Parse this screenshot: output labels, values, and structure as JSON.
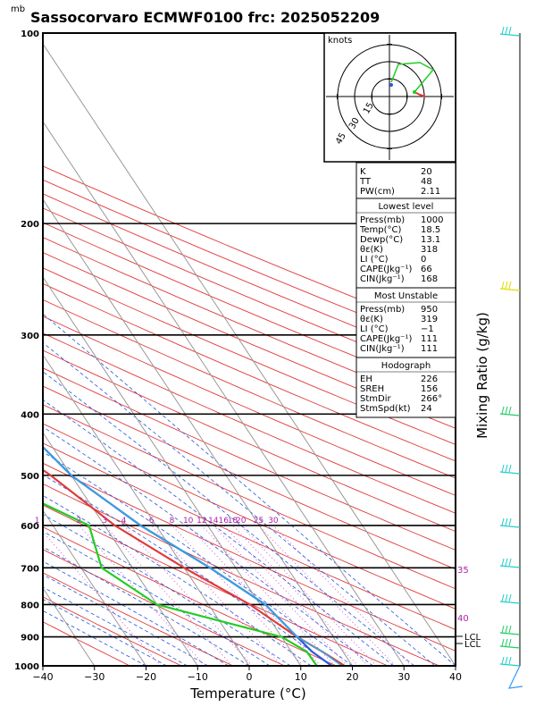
{
  "header": {
    "title": "Sassocorvaro ECMWF0100 frc: 2025052209",
    "pressure_unit": "mb"
  },
  "axes": {
    "xlabel": "Temperature (°C)",
    "right_label": "Mixing Ratio (g/kg)",
    "pressure_ticks": [
      "100",
      "200",
      "300",
      "400",
      "500",
      "600",
      "700",
      "800",
      "900",
      "1000"
    ],
    "temp_ticks": [
      "−40",
      "−30",
      "−20",
      "−10",
      "0",
      "10",
      "20",
      "30",
      "40"
    ],
    "mixing_ratio_labels": [
      "1",
      "2",
      "3",
      "4",
      "6",
      "8",
      "10",
      "12",
      "14",
      "16",
      "18",
      "20",
      "25",
      "30"
    ],
    "theta_e_labels": [
      "35",
      "40"
    ],
    "lcl_labels": [
      "LCL",
      "LCL"
    ]
  },
  "hodograph": {
    "unit": "knots",
    "ring_labels": [
      "15",
      "30",
      "45"
    ]
  },
  "indices": {
    "top": [
      {
        "label": "K",
        "value": "20"
      },
      {
        "label": "TT",
        "value": "48"
      },
      {
        "label": "PW(cm)",
        "value": "2.11"
      }
    ],
    "lowest_level": {
      "header": "Lowest level",
      "rows": [
        {
          "label": "Press(mb)",
          "value": "1000"
        },
        {
          "label": "Temp(°C)",
          "value": "18.5"
        },
        {
          "label": "Dewp(°C)",
          "value": "13.1"
        },
        {
          "label": "θε(K)",
          "value": "318"
        },
        {
          "label": "LI (°C)",
          "value": "0"
        },
        {
          "label": "CAPE(Jkg⁻¹)",
          "value": "66"
        },
        {
          "label": "CIN(Jkg⁻¹)",
          "value": "168"
        }
      ]
    },
    "most_unstable": {
      "header": "Most Unstable",
      "rows": [
        {
          "label": "Press(mb)",
          "value": "950"
        },
        {
          "label": "θε(K)",
          "value": "319"
        },
        {
          "label": "LI (°C)",
          "value": "−1"
        },
        {
          "label": "CAPE(Jkg⁻¹)",
          "value": "111"
        },
        {
          "label": "CIN(Jkg⁻¹)",
          "value": "111"
        }
      ]
    },
    "hodograph": {
      "header": "Hodograph",
      "rows": [
        {
          "label": "EH",
          "value": "226"
        },
        {
          "label": "SREH",
          "value": "156"
        },
        {
          "label": "StmDir",
          "value": "266°"
        },
        {
          "label": "StmSpd(kt)",
          "value": "24"
        }
      ]
    }
  },
  "colors": {
    "temperature": "#e03a3a",
    "dewpoint": "#22cc22",
    "parcel": "#3355dd",
    "environment": "#33aadd",
    "dry_adiabat": "#e03a3a",
    "moist_adiabat": "#2255dd",
    "mixing_ratio": "#cc44cc",
    "wind_barb": "#22cccc",
    "label_magenta": "#aa22aa"
  },
  "chart_data": {
    "type": "skew-t",
    "x_range": [
      -40,
      40
    ],
    "p_range": [
      100,
      1000
    ],
    "series": [
      {
        "key": "temperature",
        "points": [
          [
            -37,
            110
          ],
          [
            -24,
            150
          ],
          [
            -14,
            200
          ],
          [
            -10,
            250
          ],
          [
            -16,
            300
          ],
          [
            -23,
            400
          ],
          [
            -14,
            500
          ],
          [
            -8,
            600
          ],
          [
            0,
            700
          ],
          [
            8,
            800
          ],
          [
            13,
            900
          ],
          [
            16,
            950
          ],
          [
            18.5,
            1000
          ]
        ]
      },
      {
        "key": "dewpoint",
        "points": [
          [
            -38,
            110
          ],
          [
            -36,
            150
          ],
          [
            -33,
            200
          ],
          [
            -31,
            250
          ],
          [
            -32,
            300
          ],
          [
            -33,
            400
          ],
          [
            -27,
            500
          ],
          [
            -13,
            600
          ],
          [
            -16,
            700
          ],
          [
            -10,
            800
          ],
          [
            10,
            900
          ],
          [
            13,
            950
          ],
          [
            13.1,
            1000
          ]
        ]
      },
      {
        "key": "parcel",
        "points": [
          [
            -37,
            110
          ],
          [
            -28,
            150
          ],
          [
            -23,
            200
          ],
          [
            -20,
            250
          ],
          [
            -19,
            300
          ],
          [
            -14,
            400
          ],
          [
            -10,
            500
          ],
          [
            -3,
            600
          ],
          [
            5,
            700
          ],
          [
            11,
            800
          ],
          [
            13,
            900
          ],
          [
            14,
            950
          ],
          [
            16,
            1000
          ]
        ]
      },
      {
        "key": "environment",
        "points": [
          [
            -37,
            105
          ],
          [
            -28,
            150
          ],
          [
            -23,
            200
          ],
          [
            -19,
            250
          ],
          [
            -18,
            300
          ],
          [
            -14,
            400
          ],
          [
            -10,
            500
          ],
          [
            -3,
            600
          ],
          [
            5,
            700
          ],
          [
            11,
            800
          ],
          [
            13,
            900
          ],
          [
            16,
            950
          ],
          [
            18,
            1000
          ]
        ]
      }
    ]
  }
}
